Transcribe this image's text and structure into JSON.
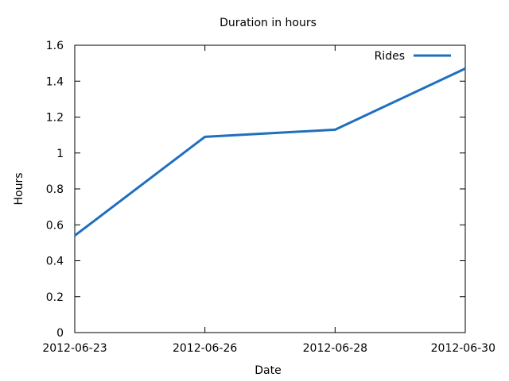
{
  "chart_data": {
    "type": "line",
    "title": "Duration in hours",
    "xlabel": "Date",
    "ylabel": "Hours",
    "categories": [
      "2012-06-23",
      "2012-06-26",
      "2012-06-28",
      "2012-06-30"
    ],
    "yticks": [
      "0",
      "0.2",
      "0.4",
      "0.6",
      "0.8",
      "1",
      "1.2",
      "1.4",
      "1.6"
    ],
    "ylim": [
      0,
      1.6
    ],
    "grid": false,
    "legend_position": "top-right",
    "series": [
      {
        "name": "Rides",
        "color": "#1f6fbf",
        "values": [
          0.54,
          1.09,
          1.13,
          1.47
        ]
      }
    ]
  }
}
